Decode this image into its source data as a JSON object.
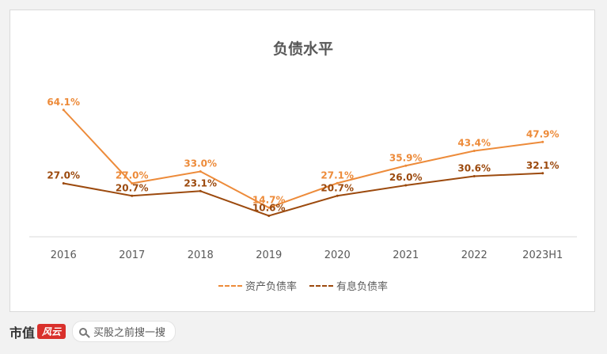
{
  "chart_data": {
    "type": "line",
    "title": "负债水平",
    "categories": [
      "2016",
      "2017",
      "2018",
      "2019",
      "2020",
      "2021",
      "2022",
      "2023H1"
    ],
    "ylim": [
      0,
      80
    ],
    "grid": false,
    "legend": "bottom",
    "series": [
      {
        "name": "资产负债率",
        "color": "#ed8b3a",
        "values": [
          64.1,
          27.0,
          33.0,
          14.7,
          27.1,
          35.9,
          43.4,
          47.9
        ],
        "labels": [
          "64.1%",
          "27.0%",
          "33.0%",
          "14.7%",
          "27.1%",
          "35.9%",
          "43.4%",
          "47.9%"
        ]
      },
      {
        "name": "有息负债率",
        "color": "#9c4a0e",
        "values": [
          27.0,
          20.7,
          23.1,
          10.6,
          20.7,
          26.0,
          30.6,
          32.1
        ],
        "labels": [
          "27.0%",
          "20.7%",
          "23.1%",
          "10.6%",
          "20.7%",
          "26.0%",
          "30.6%",
          "32.1%"
        ]
      }
    ]
  },
  "footer": {
    "brand": "市值",
    "badge": "风云",
    "search_placeholder": "买股之前搜一搜"
  }
}
